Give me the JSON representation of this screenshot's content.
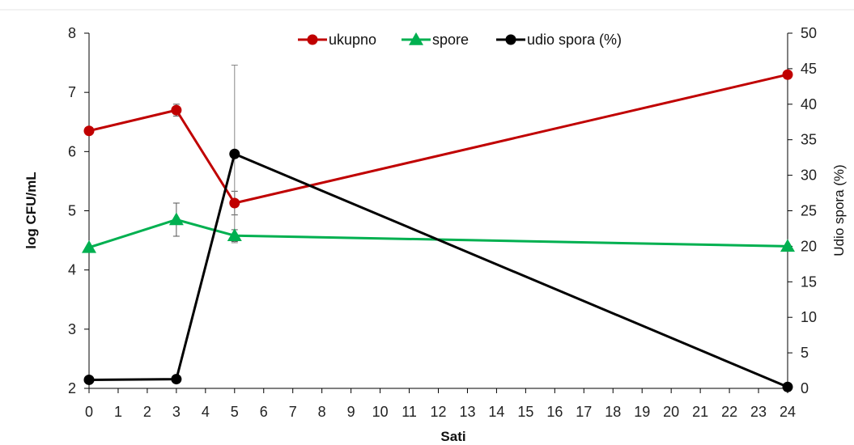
{
  "chart_data": {
    "type": "line",
    "xlabel": "Sati",
    "ylabel": "log CFU/mL",
    "y2label": "Udio spora (%)",
    "x_ticks": [
      0,
      1,
      2,
      3,
      4,
      5,
      6,
      7,
      8,
      9,
      10,
      11,
      12,
      13,
      14,
      15,
      16,
      17,
      18,
      19,
      20,
      21,
      22,
      23,
      24
    ],
    "xlim": [
      0,
      24
    ],
    "ylim": [
      2,
      8
    ],
    "y_ticks": [
      2,
      3,
      4,
      5,
      6,
      7,
      8
    ],
    "y2lim": [
      0,
      50
    ],
    "y2_ticks": [
      0,
      5,
      10,
      15,
      20,
      25,
      30,
      35,
      40,
      45,
      50
    ],
    "legend_position": "top-center",
    "grid": false,
    "series": [
      {
        "name": "ukupno",
        "axis": "left",
        "color": "#c00000",
        "marker": "circle",
        "x": [
          0,
          3,
          5,
          24
        ],
        "values": [
          6.35,
          6.7,
          5.13,
          7.3
        ],
        "error": [
          0,
          0.1,
          0.2,
          0
        ]
      },
      {
        "name": "spore",
        "axis": "left",
        "color": "#00b050",
        "marker": "triangle",
        "x": [
          0,
          3,
          5,
          24
        ],
        "values": [
          4.38,
          4.85,
          4.58,
          4.4
        ],
        "error": [
          0,
          0.28,
          0.1,
          0
        ]
      },
      {
        "name": "udio spora (%)",
        "axis": "right",
        "color": "#000000",
        "marker": "circle",
        "x": [
          0,
          3,
          5,
          24
        ],
        "values": [
          1.2,
          1.3,
          33,
          0.2
        ],
        "error": [
          0,
          0,
          12.5,
          0
        ]
      }
    ]
  }
}
